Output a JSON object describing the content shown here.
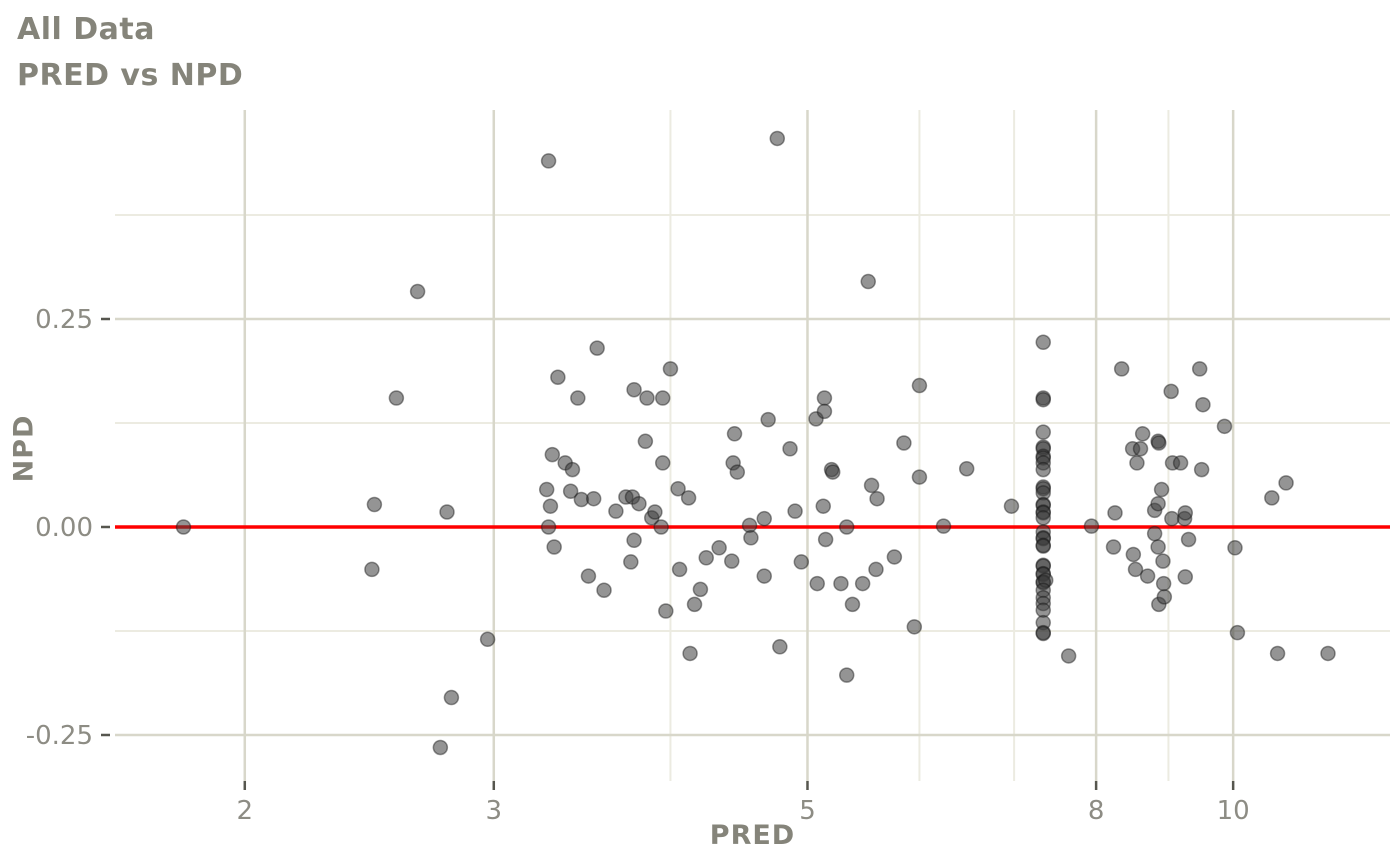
{
  "chart_data": {
    "type": "scatter",
    "title": "All Data",
    "subtitle": "PRED vs NPD",
    "xlabel": "PRED",
    "ylabel": "NPD",
    "x_scale": "log10",
    "xlim": [
      1.619,
      12.91
    ],
    "ylim": [
      -0.3053,
      0.5012
    ],
    "x_ticks": [
      2,
      3,
      5,
      8,
      10
    ],
    "x_tick_labels": [
      "2",
      "3",
      "5",
      "8",
      "10"
    ],
    "x_minor_ticks": [
      4,
      6,
      7,
      9
    ],
    "y_ticks": [
      -0.25,
      0.0,
      0.25
    ],
    "y_tick_labels": [
      "-0.25",
      "0.00",
      "0.25"
    ],
    "y_minor_ticks": [
      -0.125,
      0.125,
      0.375
    ],
    "grid": "on",
    "legend": "none",
    "ref_line": {
      "y": 0.0,
      "color": "#ff0000"
    },
    "point_style": {
      "fill": "#3c3c3c",
      "fill_opacity": 0.55,
      "stroke": "#161616",
      "stroke_opacity": 0.45,
      "radius": 7
    },
    "grid_colors": {
      "major": "#d8d7ca",
      "minor": "#ecebe1"
    },
    "tick_color": "#56564e",
    "points": [
      [
        1.81,
        0.0
      ],
      [
        2.46,
        -0.051
      ],
      [
        2.47,
        0.027
      ],
      [
        2.56,
        0.155
      ],
      [
        2.65,
        0.283
      ],
      [
        2.75,
        -0.265
      ],
      [
        2.8,
        -0.205
      ],
      [
        2.97,
        -0.135
      ],
      [
        2.78,
        0.018
      ],
      [
        3.27,
        0.045
      ],
      [
        3.28,
        0.44
      ],
      [
        3.28,
        0.0
      ],
      [
        3.29,
        0.025
      ],
      [
        3.3,
        0.087
      ],
      [
        3.31,
        -0.024
      ],
      [
        3.33,
        0.18
      ],
      [
        3.37,
        0.077
      ],
      [
        3.4,
        0.043
      ],
      [
        3.41,
        0.069
      ],
      [
        3.44,
        0.155
      ],
      [
        3.46,
        0.033
      ],
      [
        3.5,
        -0.059
      ],
      [
        3.53,
        0.034
      ],
      [
        3.55,
        0.215
      ],
      [
        3.59,
        -0.076
      ],
      [
        3.66,
        0.019
      ],
      [
        3.72,
        0.036
      ],
      [
        3.76,
        0.036
      ],
      [
        3.75,
        -0.042
      ],
      [
        3.77,
        0.165
      ],
      [
        3.77,
        -0.016
      ],
      [
        3.8,
        0.028
      ],
      [
        3.84,
        0.103
      ],
      [
        3.85,
        0.155
      ],
      [
        3.88,
        0.011
      ],
      [
        3.9,
        0.018
      ],
      [
        3.94,
        0.0
      ],
      [
        3.95,
        0.155
      ],
      [
        3.95,
        0.077
      ],
      [
        3.97,
        -0.101
      ],
      [
        4.0,
        0.19
      ],
      [
        4.05,
        0.046
      ],
      [
        4.06,
        -0.051
      ],
      [
        4.12,
        0.035
      ],
      [
        4.13,
        -0.152
      ],
      [
        4.16,
        -0.093
      ],
      [
        4.2,
        -0.075
      ],
      [
        4.24,
        -0.037
      ],
      [
        4.33,
        -0.025
      ],
      [
        4.42,
        -0.041
      ],
      [
        4.43,
        0.077
      ],
      [
        4.44,
        0.112
      ],
      [
        4.46,
        0.066
      ],
      [
        4.55,
        0.002
      ],
      [
        4.56,
        -0.013
      ],
      [
        4.66,
        0.01
      ],
      [
        4.66,
        -0.059
      ],
      [
        4.69,
        0.129
      ],
      [
        4.76,
        0.467
      ],
      [
        4.78,
        -0.144
      ],
      [
        4.86,
        0.094
      ],
      [
        4.9,
        0.019
      ],
      [
        4.95,
        -0.042
      ],
      [
        5.07,
        0.13
      ],
      [
        5.08,
        -0.068
      ],
      [
        5.13,
        0.025
      ],
      [
        5.14,
        0.155
      ],
      [
        5.14,
        0.139
      ],
      [
        5.15,
        -0.015
      ],
      [
        5.2,
        0.069
      ],
      [
        5.21,
        0.066
      ],
      [
        5.28,
        -0.068
      ],
      [
        5.33,
        0.0
      ],
      [
        5.33,
        -0.178
      ],
      [
        5.38,
        -0.093
      ],
      [
        5.47,
        -0.068
      ],
      [
        5.52,
        0.295
      ],
      [
        5.55,
        0.05
      ],
      [
        5.59,
        -0.051
      ],
      [
        5.6,
        0.034
      ],
      [
        5.76,
        -0.036
      ],
      [
        5.85,
        0.101
      ],
      [
        5.95,
        -0.12
      ],
      [
        6.0,
        0.17
      ],
      [
        6.0,
        0.06
      ],
      [
        6.24,
        0.001
      ],
      [
        6.48,
        0.07
      ],
      [
        6.97,
        0.025
      ],
      [
        7.34,
        0.222
      ],
      [
        7.34,
        0.155
      ],
      [
        7.34,
        0.153
      ],
      [
        7.34,
        0.114
      ],
      [
        7.34,
        0.096
      ],
      [
        7.34,
        0.094
      ],
      [
        7.34,
        0.085
      ],
      [
        7.34,
        0.083
      ],
      [
        7.34,
        0.077
      ],
      [
        7.34,
        0.069
      ],
      [
        7.34,
        0.048
      ],
      [
        7.34,
        0.046
      ],
      [
        7.34,
        0.041
      ],
      [
        7.34,
        0.027
      ],
      [
        7.34,
        0.026
      ],
      [
        7.34,
        0.018
      ],
      [
        7.34,
        0.017
      ],
      [
        7.34,
        0.011
      ],
      [
        7.34,
        -0.006
      ],
      [
        7.34,
        -0.013
      ],
      [
        7.34,
        -0.014
      ],
      [
        7.34,
        -0.022
      ],
      [
        7.34,
        -0.023
      ],
      [
        7.34,
        -0.046
      ],
      [
        7.34,
        -0.047
      ],
      [
        7.34,
        -0.056
      ],
      [
        7.34,
        -0.057
      ],
      [
        7.34,
        -0.066
      ],
      [
        7.34,
        -0.067
      ],
      [
        7.37,
        -0.064
      ],
      [
        7.34,
        -0.076
      ],
      [
        7.34,
        -0.085
      ],
      [
        7.34,
        -0.092
      ],
      [
        7.34,
        -0.1
      ],
      [
        7.34,
        -0.115
      ],
      [
        7.34,
        -0.127
      ],
      [
        7.34,
        -0.128
      ],
      [
        7.65,
        -0.155
      ],
      [
        7.94,
        0.001
      ],
      [
        8.23,
        -0.024
      ],
      [
        8.25,
        0.017
      ],
      [
        8.34,
        0.19
      ],
      [
        8.49,
        0.094
      ],
      [
        8.5,
        -0.033
      ],
      [
        8.53,
        -0.051
      ],
      [
        8.55,
        0.077
      ],
      [
        8.6,
        0.094
      ],
      [
        8.63,
        0.112
      ],
      [
        8.7,
        -0.059
      ],
      [
        8.8,
        0.02
      ],
      [
        8.8,
        -0.008
      ],
      [
        8.85,
        0.103
      ],
      [
        8.86,
        0.101
      ],
      [
        8.85,
        0.028
      ],
      [
        8.85,
        -0.024
      ],
      [
        8.86,
        -0.093
      ],
      [
        8.9,
        0.045
      ],
      [
        8.92,
        -0.041
      ],
      [
        8.93,
        -0.068
      ],
      [
        8.94,
        -0.084
      ],
      [
        9.04,
        0.163
      ],
      [
        9.05,
        0.01
      ],
      [
        9.06,
        0.077
      ],
      [
        9.18,
        0.077
      ],
      [
        9.24,
        0.01
      ],
      [
        9.25,
        0.017
      ],
      [
        9.25,
        -0.06
      ],
      [
        9.3,
        -0.015
      ],
      [
        9.47,
        0.19
      ],
      [
        9.5,
        0.069
      ],
      [
        9.52,
        0.147
      ],
      [
        9.86,
        0.121
      ],
      [
        10.03,
        -0.025
      ],
      [
        10.07,
        -0.127
      ],
      [
        10.65,
        0.035
      ],
      [
        10.9,
        0.053
      ],
      [
        10.75,
        -0.152
      ],
      [
        11.67,
        -0.152
      ]
    ]
  }
}
